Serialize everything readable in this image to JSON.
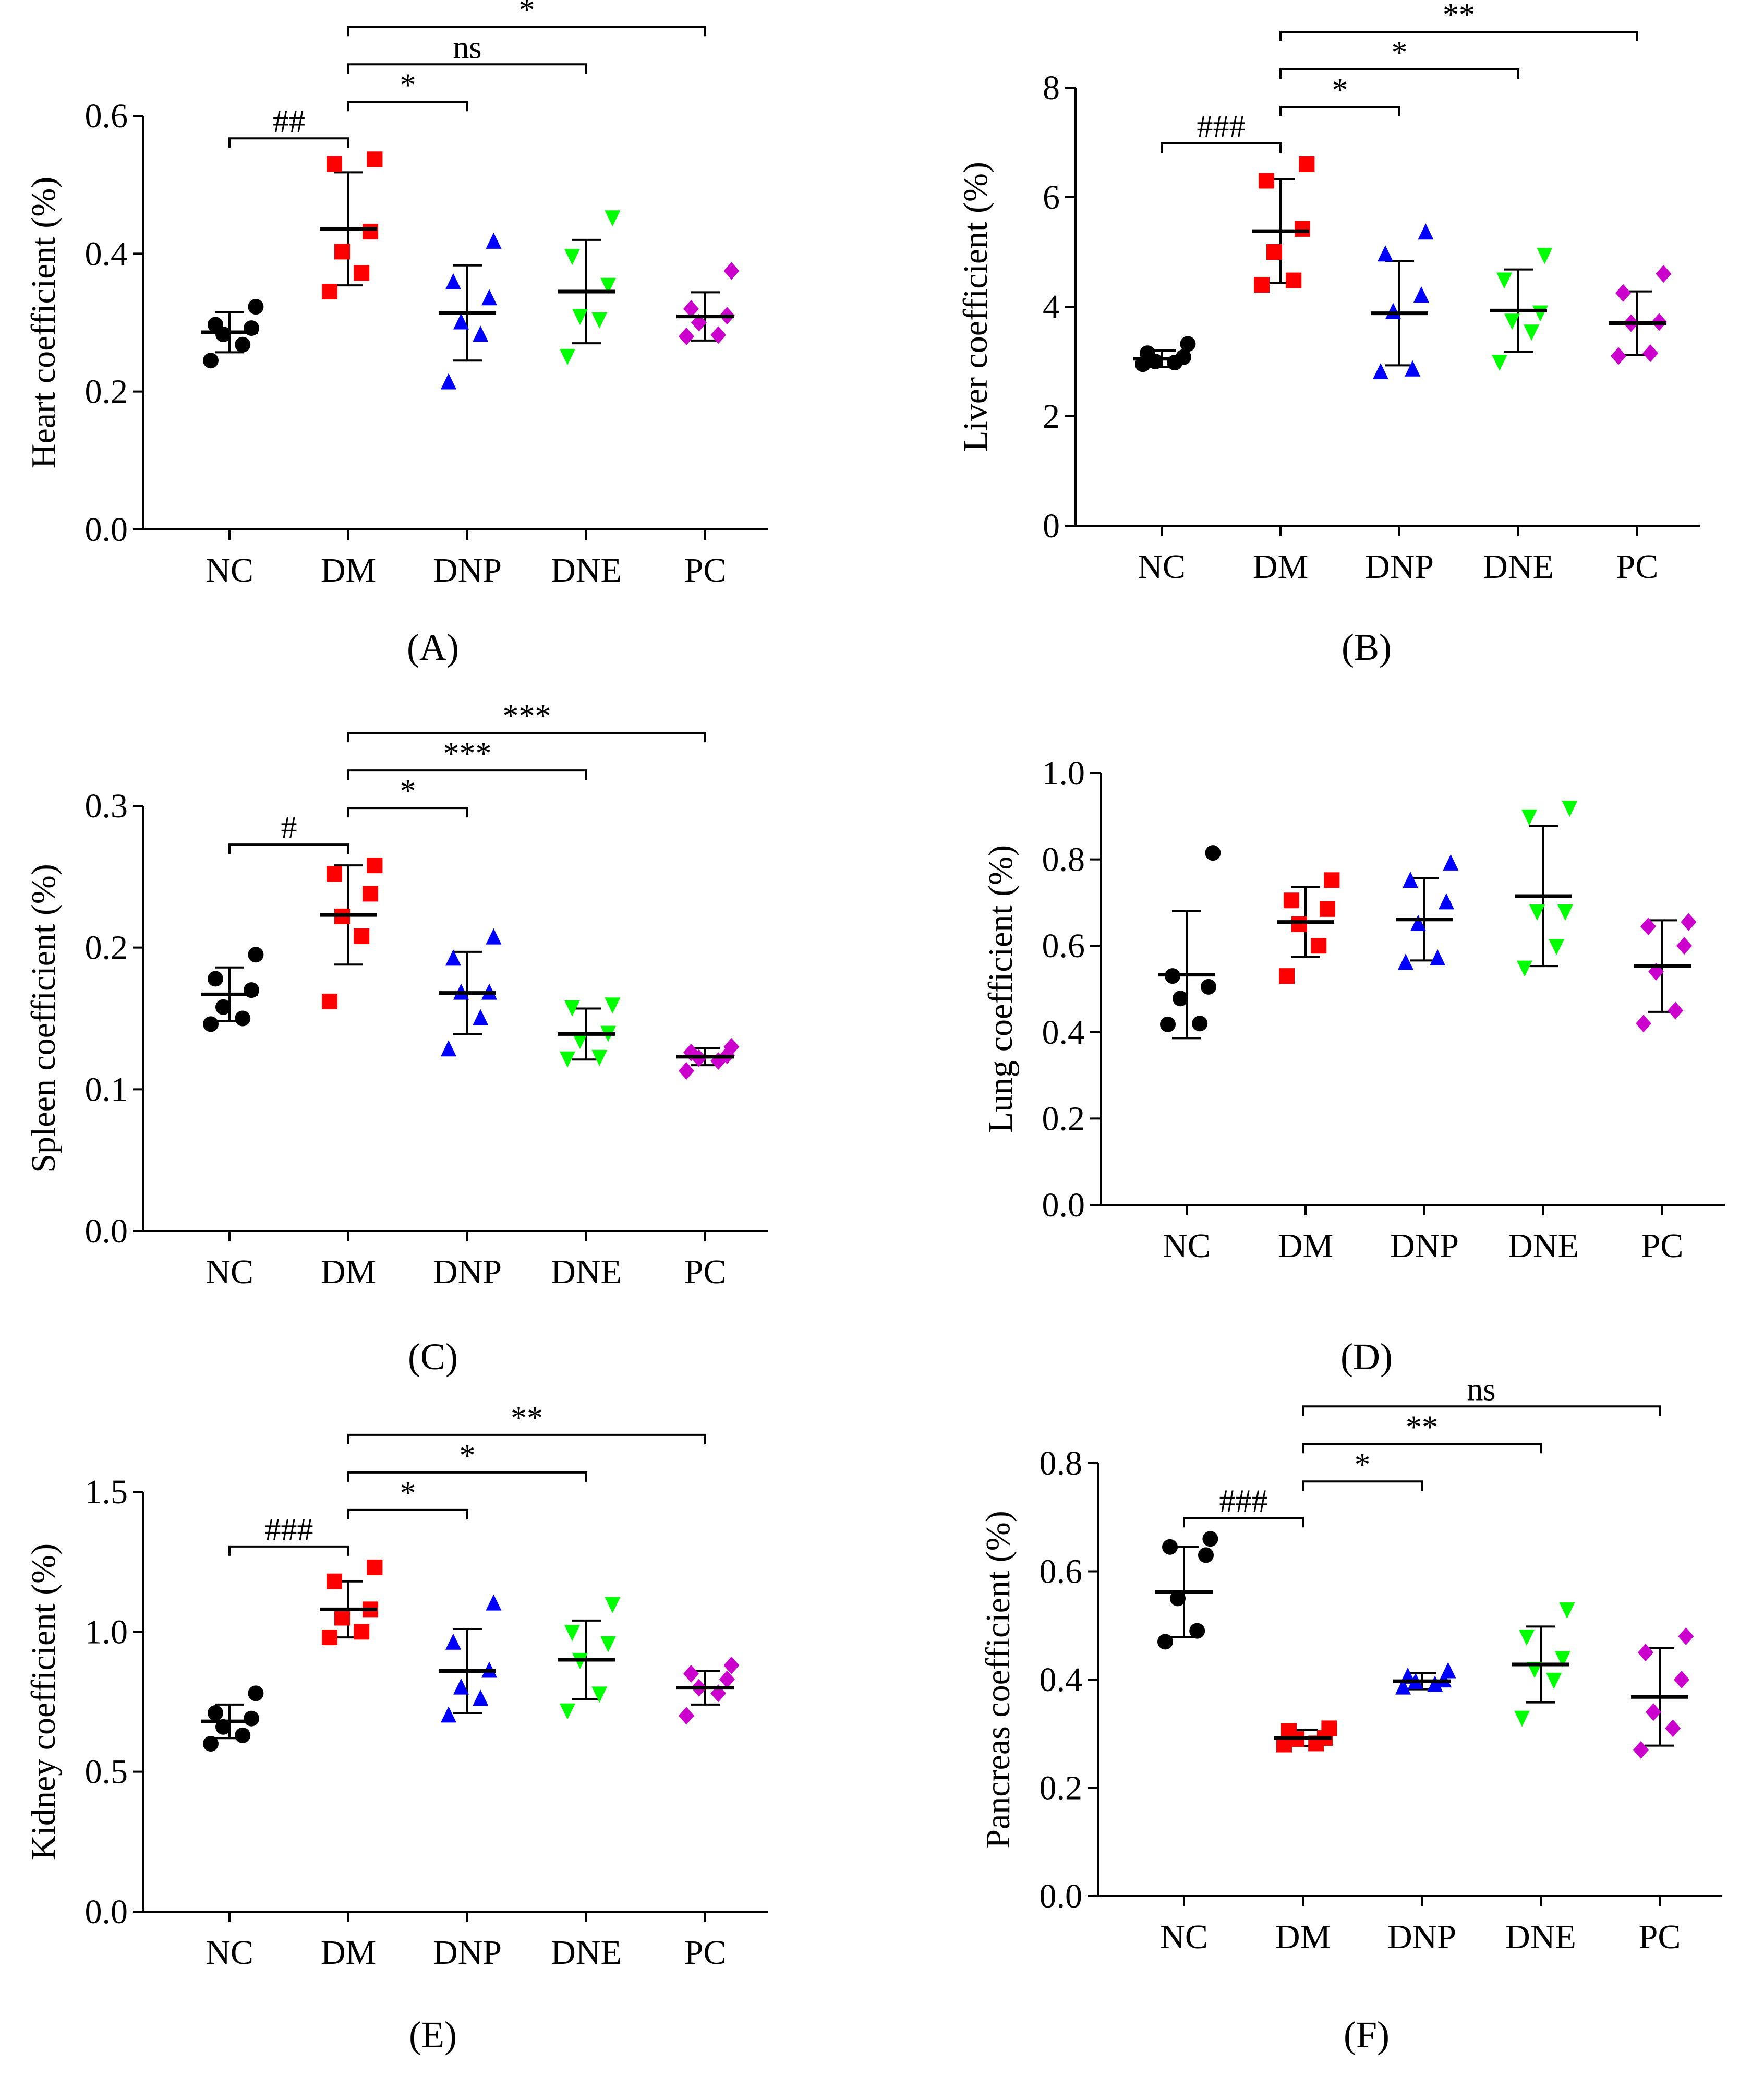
{
  "colors": {
    "NC": "#000000",
    "DM": "#ff0000",
    "DNP": "#0000ff",
    "DNE": "#00ff00",
    "PC": "#cc00cc",
    "axis": "#000000"
  },
  "chart_data": [
    {
      "panel": "A",
      "type": "scatter",
      "ylabel": "Heart coefficient (%)",
      "ylim": [
        0,
        0.6
      ],
      "yticks": [
        0.0,
        0.2,
        0.4,
        0.6
      ],
      "ytick_labels": [
        "0.0",
        "0.2",
        "0.4",
        "0.6"
      ],
      "categories": [
        "NC",
        "DM",
        "DNP",
        "DNE",
        "PC"
      ],
      "groups": [
        {
          "name": "NC",
          "mean": 0.286,
          "sd": 0.029,
          "points": [
            0.245,
            0.268,
            0.283,
            0.292,
            0.297,
            0.323
          ],
          "marker": "circle"
        },
        {
          "name": "DM",
          "mean": 0.436,
          "sd": 0.082,
          "points": [
            0.345,
            0.372,
            0.403,
            0.432,
            0.53,
            0.537
          ],
          "marker": "square"
        },
        {
          "name": "DNP",
          "mean": 0.314,
          "sd": 0.069,
          "points": [
            0.213,
            0.282,
            0.3,
            0.335,
            0.358,
            0.417
          ],
          "marker": "triangle"
        },
        {
          "name": "DNE",
          "mean": 0.345,
          "sd": 0.075,
          "points": [
            0.252,
            0.305,
            0.31,
            0.355,
            0.397,
            0.453
          ],
          "marker": "invtriangle"
        },
        {
          "name": "PC",
          "mean": 0.309,
          "sd": 0.035,
          "points": [
            0.28,
            0.282,
            0.3,
            0.31,
            0.32,
            0.375
          ],
          "marker": "diamond"
        }
      ],
      "brackets": [
        {
          "from": "NC",
          "to": "DM",
          "label": "##"
        },
        {
          "from": "DM",
          "to": "DNP",
          "label": "*"
        },
        {
          "from": "DM",
          "to": "DNE",
          "label": "ns"
        },
        {
          "from": "DM",
          "to": "PC",
          "label": "*"
        }
      ]
    },
    {
      "panel": "B",
      "type": "scatter",
      "ylabel": "Liver coefficient (%)",
      "ylim": [
        0,
        8
      ],
      "yticks": [
        0,
        2,
        4,
        6,
        8
      ],
      "ytick_labels": [
        "0",
        "2",
        "4",
        "6",
        "8"
      ],
      "categories": [
        "NC",
        "DM",
        "DNP",
        "DNE",
        "PC"
      ],
      "groups": [
        {
          "name": "NC",
          "mean": 3.05,
          "sd": 0.15,
          "points": [
            2.95,
            2.98,
            3.0,
            3.08,
            3.15,
            3.32
          ],
          "marker": "circle"
        },
        {
          "name": "DM",
          "mean": 5.38,
          "sd": 0.95,
          "points": [
            4.4,
            4.48,
            5.0,
            5.42,
            6.3,
            6.6
          ],
          "marker": "square"
        },
        {
          "name": "DNP",
          "mean": 3.88,
          "sd": 0.95,
          "points": [
            2.8,
            2.85,
            3.9,
            4.2,
            4.95,
            5.35
          ],
          "marker": "triangle"
        },
        {
          "name": "DNE",
          "mean": 3.93,
          "sd": 0.75,
          "points": [
            3.0,
            3.55,
            3.75,
            3.9,
            4.5,
            4.95
          ],
          "marker": "invtriangle"
        },
        {
          "name": "PC",
          "mean": 3.7,
          "sd": 0.58,
          "points": [
            3.1,
            3.15,
            3.7,
            3.72,
            4.25,
            4.6
          ],
          "marker": "diamond"
        }
      ],
      "brackets": [
        {
          "from": "NC",
          "to": "DM",
          "label": "###"
        },
        {
          "from": "DM",
          "to": "DNP",
          "label": "*"
        },
        {
          "from": "DM",
          "to": "DNE",
          "label": "*"
        },
        {
          "from": "DM",
          "to": "PC",
          "label": "**"
        }
      ]
    },
    {
      "panel": "C",
      "type": "scatter",
      "ylabel": "Spleen coefficient (%)",
      "ylim": [
        0,
        0.3
      ],
      "yticks": [
        0.0,
        0.1,
        0.2,
        0.3
      ],
      "ytick_labels": [
        "0.0",
        "0.1",
        "0.2",
        "0.3"
      ],
      "categories": [
        "NC",
        "DM",
        "DNP",
        "DNE",
        "PC"
      ],
      "groups": [
        {
          "name": "NC",
          "mean": 0.167,
          "sd": 0.019,
          "points": [
            0.146,
            0.15,
            0.158,
            0.17,
            0.178,
            0.195
          ],
          "marker": "circle"
        },
        {
          "name": "DM",
          "mean": 0.223,
          "sd": 0.035,
          "points": [
            0.162,
            0.208,
            0.222,
            0.238,
            0.252,
            0.258
          ],
          "marker": "square"
        },
        {
          "name": "DNP",
          "mean": 0.168,
          "sd": 0.029,
          "points": [
            0.128,
            0.15,
            0.168,
            0.168,
            0.192,
            0.207
          ],
          "marker": "triangle"
        },
        {
          "name": "DNE",
          "mean": 0.139,
          "sd": 0.018,
          "points": [
            0.122,
            0.123,
            0.135,
            0.14,
            0.158,
            0.16
          ],
          "marker": "invtriangle"
        },
        {
          "name": "PC",
          "mean": 0.123,
          "sd": 0.006,
          "points": [
            0.113,
            0.12,
            0.122,
            0.124,
            0.126,
            0.13
          ],
          "marker": "diamond"
        }
      ],
      "brackets": [
        {
          "from": "NC",
          "to": "DM",
          "label": "#"
        },
        {
          "from": "DM",
          "to": "DNP",
          "label": "*"
        },
        {
          "from": "DM",
          "to": "DNE",
          "label": "***"
        },
        {
          "from": "DM",
          "to": "PC",
          "label": "***"
        }
      ]
    },
    {
      "panel": "D",
      "type": "scatter",
      "ylabel": "Lung coefficient (%)",
      "ylim": [
        0,
        1.0
      ],
      "yticks": [
        0.0,
        0.2,
        0.4,
        0.6,
        0.8,
        1.0
      ],
      "ytick_labels": [
        "0.0",
        "0.2",
        "0.4",
        "0.6",
        "0.8",
        "1.0"
      ],
      "categories": [
        "NC",
        "DM",
        "DNP",
        "DNE",
        "PC"
      ],
      "groups": [
        {
          "name": "NC",
          "mean": 0.533,
          "sd": 0.147,
          "points": [
            0.418,
            0.42,
            0.478,
            0.505,
            0.53,
            0.815
          ],
          "marker": "circle"
        },
        {
          "name": "DM",
          "mean": 0.655,
          "sd": 0.081,
          "points": [
            0.53,
            0.6,
            0.65,
            0.685,
            0.705,
            0.752
          ],
          "marker": "square"
        },
        {
          "name": "DNP",
          "mean": 0.661,
          "sd": 0.095,
          "points": [
            0.56,
            0.57,
            0.65,
            0.7,
            0.75,
            0.79
          ],
          "marker": "triangle"
        },
        {
          "name": "DNE",
          "mean": 0.715,
          "sd": 0.162,
          "points": [
            0.55,
            0.6,
            0.68,
            0.68,
            0.9,
            0.92
          ],
          "marker": "invtriangle"
        },
        {
          "name": "PC",
          "mean": 0.553,
          "sd": 0.106,
          "points": [
            0.42,
            0.45,
            0.54,
            0.6,
            0.645,
            0.655
          ],
          "marker": "diamond"
        }
      ],
      "brackets": []
    },
    {
      "panel": "E",
      "type": "scatter",
      "ylabel": "Kidney coefficient (%)",
      "ylim": [
        0,
        1.5
      ],
      "yticks": [
        0.0,
        0.5,
        1.0,
        1.5
      ],
      "ytick_labels": [
        "0.0",
        "0.5",
        "1.0",
        "1.5"
      ],
      "categories": [
        "NC",
        "DM",
        "DNP",
        "DNE",
        "PC"
      ],
      "groups": [
        {
          "name": "NC",
          "mean": 0.68,
          "sd": 0.06,
          "points": [
            0.6,
            0.63,
            0.66,
            0.69,
            0.71,
            0.78
          ],
          "marker": "circle"
        },
        {
          "name": "DM",
          "mean": 1.08,
          "sd": 0.1,
          "points": [
            0.98,
            1.0,
            1.05,
            1.08,
            1.18,
            1.23
          ],
          "marker": "square"
        },
        {
          "name": "DNP",
          "mean": 0.86,
          "sd": 0.15,
          "points": [
            0.7,
            0.76,
            0.8,
            0.86,
            0.96,
            1.1
          ],
          "marker": "triangle"
        },
        {
          "name": "DNE",
          "mean": 0.9,
          "sd": 0.14,
          "points": [
            0.72,
            0.78,
            0.9,
            0.96,
            1.0,
            1.1
          ],
          "marker": "invtriangle"
        },
        {
          "name": "PC",
          "mean": 0.8,
          "sd": 0.06,
          "points": [
            0.7,
            0.78,
            0.8,
            0.83,
            0.85,
            0.88
          ],
          "marker": "diamond"
        }
      ],
      "brackets": [
        {
          "from": "NC",
          "to": "DM",
          "label": "###"
        },
        {
          "from": "DM",
          "to": "DNP",
          "label": "*"
        },
        {
          "from": "DM",
          "to": "DNE",
          "label": "*"
        },
        {
          "from": "DM",
          "to": "PC",
          "label": "**"
        }
      ]
    },
    {
      "panel": "F",
      "type": "scatter",
      "ylabel": "Pancreas coefficient (%)",
      "ylim": [
        0,
        0.8
      ],
      "yticks": [
        0.0,
        0.2,
        0.4,
        0.6,
        0.8
      ],
      "ytick_labels": [
        "0.0",
        "0.2",
        "0.4",
        "0.6",
        "0.8"
      ],
      "categories": [
        "NC",
        "DM",
        "DNP",
        "DNE",
        "PC"
      ],
      "groups": [
        {
          "name": "NC",
          "mean": 0.562,
          "sd": 0.083,
          "points": [
            0.47,
            0.49,
            0.55,
            0.63,
            0.645,
            0.66
          ],
          "marker": "circle"
        },
        {
          "name": "DM",
          "mean": 0.292,
          "sd": 0.015,
          "points": [
            0.28,
            0.282,
            0.29,
            0.292,
            0.305,
            0.31
          ],
          "marker": "square"
        },
        {
          "name": "DNP",
          "mean": 0.397,
          "sd": 0.015,
          "points": [
            0.385,
            0.39,
            0.395,
            0.398,
            0.405,
            0.415
          ],
          "marker": "triangle"
        },
        {
          "name": "DNE",
          "mean": 0.428,
          "sd": 0.07,
          "points": [
            0.33,
            0.4,
            0.42,
            0.44,
            0.48,
            0.53
          ],
          "marker": "invtriangle"
        },
        {
          "name": "PC",
          "mean": 0.368,
          "sd": 0.09,
          "points": [
            0.27,
            0.31,
            0.34,
            0.4,
            0.45,
            0.48
          ],
          "marker": "diamond"
        }
      ],
      "brackets": [
        {
          "from": "NC",
          "to": "DM",
          "label": "###"
        },
        {
          "from": "DM",
          "to": "DNP",
          "label": "*"
        },
        {
          "from": "DM",
          "to": "DNE",
          "label": "**"
        },
        {
          "from": "DM",
          "to": "PC",
          "label": "ns"
        }
      ]
    }
  ],
  "panel_labels": [
    "(A)",
    "(B)",
    "(C)",
    "(D)",
    "(E)",
    "(F)"
  ]
}
